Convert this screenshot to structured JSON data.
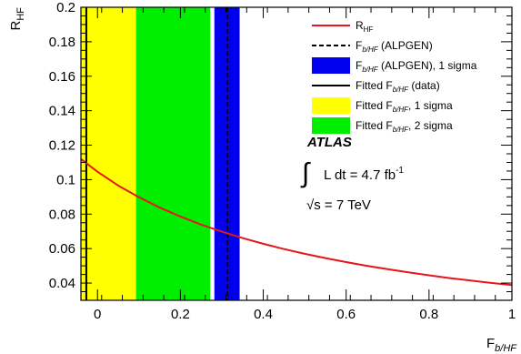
{
  "chart_data": {
    "type": "line",
    "xlabel": "F",
    "xlabel_sub": "b/HF",
    "ylabel": "R",
    "ylabel_sub": "HF",
    "xlim": [
      -0.04,
      1.0
    ],
    "ylim": [
      0.03,
      0.2
    ],
    "x_ticks": [
      0,
      0.2,
      0.4,
      0.6,
      0.8,
      1
    ],
    "x_tick_labels": [
      "0",
      "0.2",
      "0.4",
      "0.6",
      "0.8",
      "1"
    ],
    "y_ticks": [
      0.04,
      0.06,
      0.08,
      0.1,
      0.12,
      0.14,
      0.16,
      0.18,
      0.2
    ],
    "y_tick_labels": [
      "0.04",
      "0.06",
      "0.08",
      "0.1",
      "0.12",
      "0.14",
      "0.16",
      "0.18",
      "0.2"
    ],
    "series": [
      {
        "name": "R_HF",
        "color": "#e8151b",
        "x": [
          -0.04,
          0.0,
          0.05,
          0.1,
          0.15,
          0.2,
          0.25,
          0.3,
          0.35,
          0.4,
          0.45,
          0.5,
          0.55,
          0.6,
          0.65,
          0.7,
          0.75,
          0.8,
          0.85,
          0.9,
          0.95,
          1.0
        ],
        "y": [
          0.112,
          0.1046,
          0.0966,
          0.0898,
          0.0838,
          0.0786,
          0.0739,
          0.0698,
          0.0661,
          0.0628,
          0.0597,
          0.057,
          0.0545,
          0.0522,
          0.05,
          0.0481,
          0.0462,
          0.0445,
          0.0429,
          0.0415,
          0.0401,
          0.0388
        ]
      }
    ],
    "bands": [
      {
        "name": "Fitted F_b/HF, 2 sigma",
        "color": "#00ee00",
        "x_range": [
          -0.04,
          0.272
        ]
      },
      {
        "name": "Fitted F_b/HF, 1 sigma",
        "color": "#ffff00",
        "x_range": [
          -0.04,
          0.093
        ]
      },
      {
        "name": "F_b/HF (ALPGEN), 1 sigma",
        "color": "#0000ee",
        "x_range": [
          0.282,
          0.343
        ]
      }
    ],
    "vertical_lines": [
      {
        "name": "Fitted F_b/HF (data)",
        "x": -0.027,
        "style": "solid",
        "color": "#000000"
      },
      {
        "name": "F_b/HF (ALPGEN)",
        "x": 0.313,
        "style": "dashed",
        "color": "#000000"
      }
    ],
    "legend": {
      "position": "top-right",
      "entries": [
        {
          "main": "R",
          "sub": "HF",
          "rest": "",
          "kind": "line",
          "color": "#e8151b"
        },
        {
          "main": "F",
          "sub": "b/HF",
          "rest": " (ALPGEN)",
          "kind": "dashed",
          "color": "#000000"
        },
        {
          "main": "F",
          "sub": "b/HF",
          "rest": " (ALPGEN), 1 sigma",
          "kind": "box",
          "color": "#0000ee"
        },
        {
          "main": "Fitted F",
          "sub": "b/HF",
          "rest": " (data)",
          "kind": "solid",
          "color": "#000000"
        },
        {
          "main": "Fitted F",
          "sub": "b/HF",
          "rest": ", 1 sigma",
          "kind": "box",
          "color": "#ffff00"
        },
        {
          "main": "Fitted F",
          "sub": "b/HF",
          "rest": ", 2 sigma",
          "kind": "box",
          "color": "#00ee00"
        }
      ]
    },
    "annotations": {
      "experiment": "ATLAS",
      "integral_sign": "∫",
      "lumi_text": "L dt = 4.7 fb",
      "lumi_exp": "-1",
      "energy_sqrt": "√",
      "energy_text": "s = 7 TeV"
    }
  }
}
